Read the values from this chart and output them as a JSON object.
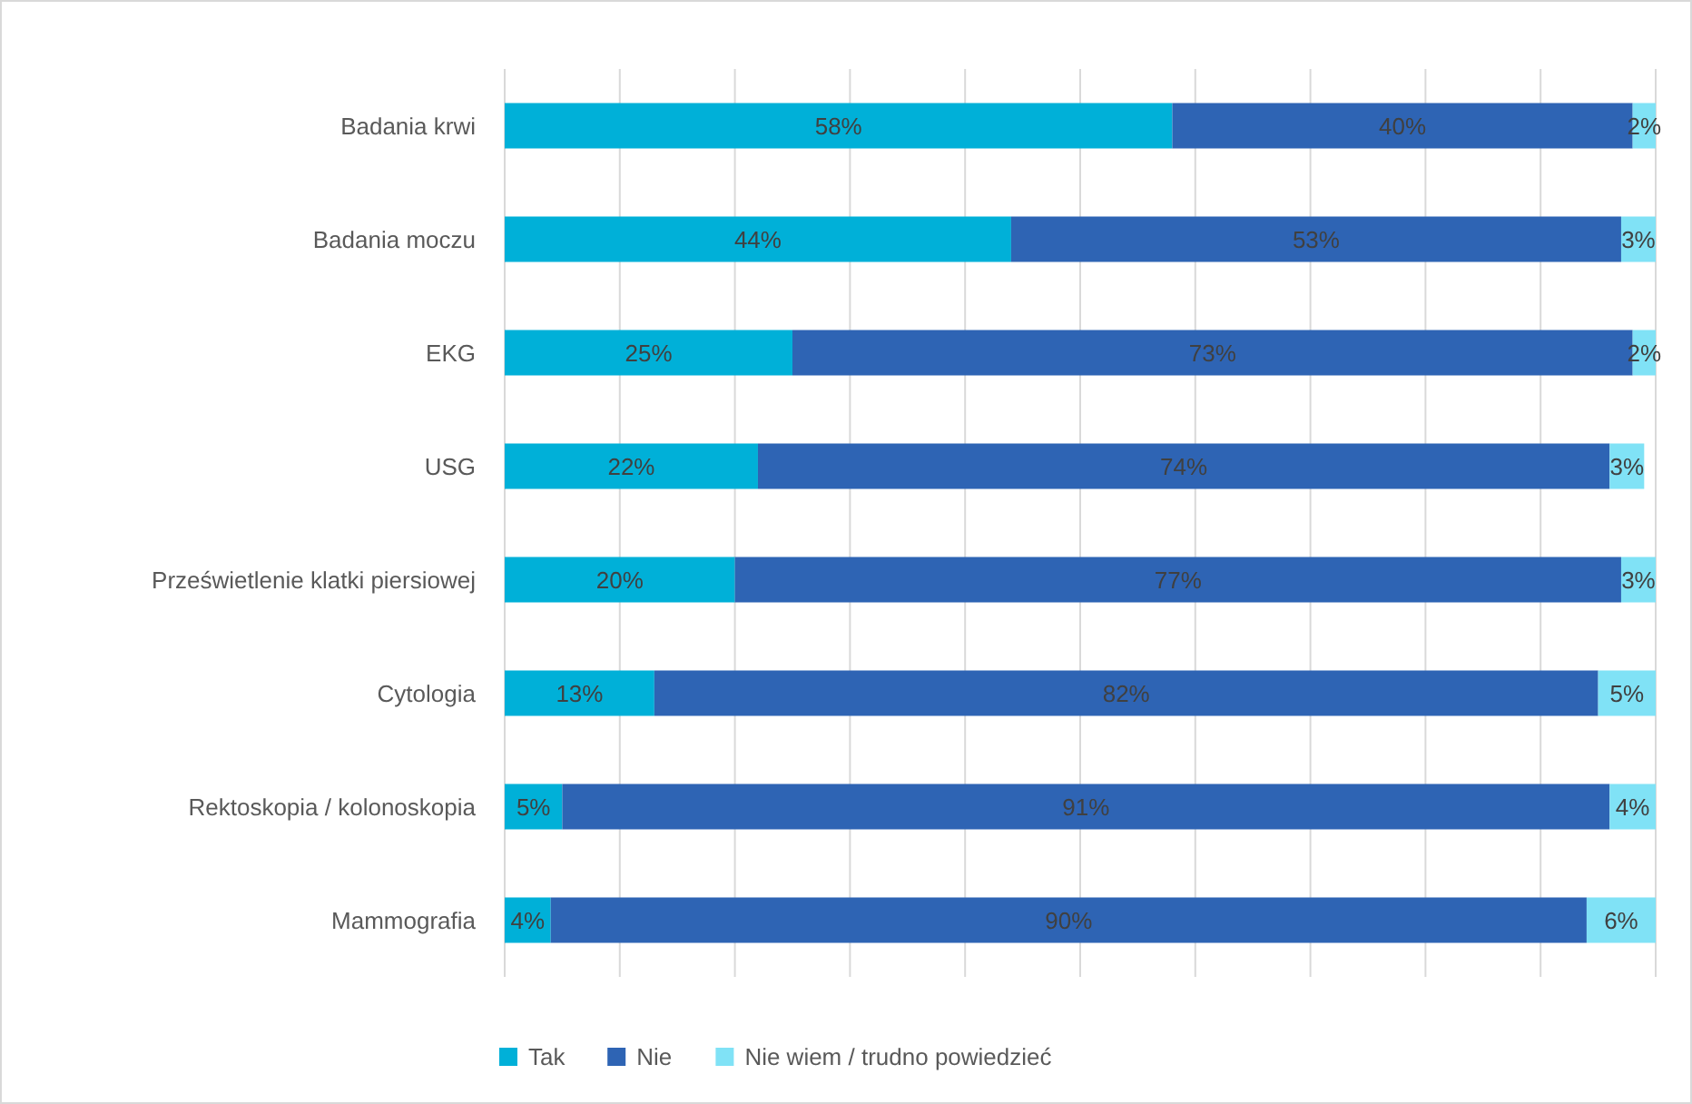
{
  "chart_data": {
    "type": "bar",
    "orientation": "horizontal",
    "stacked": true,
    "categories": [
      "Badania krwi",
      "Badania moczu",
      "EKG",
      "USG",
      "Prześwietlenie klatki piersiowej",
      "Cytologia",
      "Rektoskopia / kolonoskopia",
      "Mammografia"
    ],
    "series": [
      {
        "name": "Tak",
        "color": "#00b0d8",
        "values": [
          58,
          44,
          25,
          22,
          20,
          13,
          5,
          4
        ],
        "value_labels": [
          "58%",
          "44%",
          "25%",
          "22%",
          "20%",
          "13%",
          "5%",
          "4%"
        ]
      },
      {
        "name": "Nie",
        "color": "#2e64b4",
        "values": [
          40,
          53,
          73,
          74,
          77,
          82,
          91,
          90
        ],
        "value_labels": [
          "40%",
          "53%",
          "73%",
          "74%",
          "77%",
          "82%",
          "91%",
          "90%"
        ]
      },
      {
        "name": "Nie wiem / trudno powiedzieć",
        "color": "#80e2f6",
        "values": [
          2,
          3,
          2,
          3,
          3,
          5,
          4,
          6
        ],
        "value_labels": [
          "2%",
          "3%",
          "2%",
          "3%",
          "3%",
          "5%",
          "4%",
          "6%"
        ]
      }
    ],
    "xlim": [
      0,
      100
    ],
    "xticks": [
      {
        "value": 0,
        "label": null
      },
      {
        "value": 10,
        "label": null
      },
      {
        "value": 20,
        "label": null
      },
      {
        "value": 30,
        "label": null
      },
      {
        "value": 40,
        "label": null
      },
      {
        "value": 50,
        "label": null
      },
      {
        "value": 60,
        "label": null
      },
      {
        "value": 70,
        "label": null
      },
      {
        "value": 80,
        "label": null
      },
      {
        "value": 90,
        "label": null
      },
      {
        "value": 100,
        "label": null
      }
    ],
    "tick_labels": "y",
    "grid": "x",
    "legend": "bottom"
  }
}
